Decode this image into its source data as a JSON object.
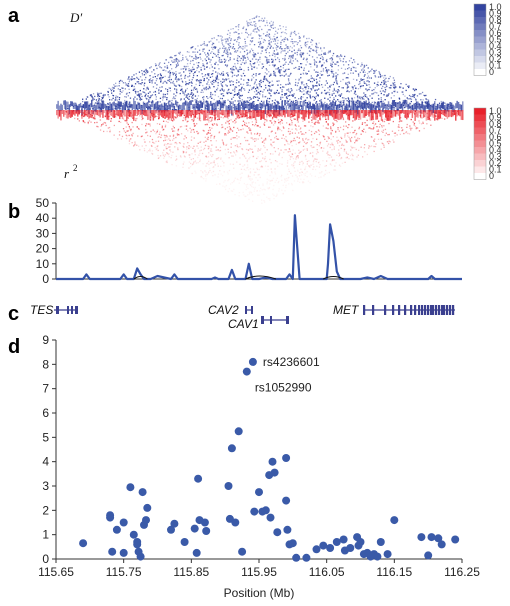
{
  "panels": {
    "a": "a",
    "b": "b",
    "c": "c",
    "d": "d"
  },
  "ld_heatmap": {
    "top_label": "D′",
    "bottom_label": "r",
    "bottom_label_sup": "2",
    "top_color": "#3344a0",
    "bottom_color": "#e8202a",
    "top_scale": [
      "1.0",
      "0.9",
      "0.8",
      "0.7",
      "0.6",
      "0.5",
      "0.4",
      "0.3",
      "0.2",
      "0.1",
      "0"
    ],
    "bottom_scale": [
      "1.0",
      "0.9",
      "0.8",
      "0.7",
      "0.6",
      "0.5",
      "0.4",
      "0.3",
      "0.2",
      "0.1",
      "0"
    ]
  },
  "genes": [
    {
      "name": "TES"
    },
    {
      "name": "CAV2"
    },
    {
      "name": "CAV1"
    },
    {
      "name": "MET"
    }
  ],
  "chart_data": [
    {
      "type": "line",
      "panel": "b",
      "yticks": [
        0,
        10,
        20,
        30,
        40,
        50
      ],
      "ylim": [
        0,
        50
      ],
      "xlim": [
        115.65,
        116.25
      ],
      "line_color": "#3352a8",
      "series": [
        {
          "x": [
            115.65,
            115.69,
            115.695,
            115.7,
            115.745,
            115.75,
            115.755,
            115.765,
            115.77,
            115.775,
            115.78,
            115.79,
            115.8,
            115.82,
            115.825,
            115.83,
            115.88,
            115.885,
            115.89,
            115.905,
            115.91,
            115.915,
            115.93,
            115.935,
            115.94,
            115.95,
            115.96,
            115.97,
            115.99,
            115.995,
            116.0,
            116.003,
            116.005,
            116.01,
            116.02,
            116.05,
            116.052,
            116.055,
            116.06,
            116.065,
            116.07,
            116.08,
            116.1,
            116.11,
            116.12,
            116.13,
            116.14,
            116.2,
            116.205,
            116.21,
            116.25
          ],
          "y": [
            0,
            0,
            3,
            0,
            0,
            3,
            0,
            0,
            7,
            3,
            0,
            0,
            2,
            0,
            3,
            0,
            0,
            1,
            0,
            0,
            6,
            0,
            0,
            10,
            0,
            0,
            1,
            0,
            0,
            3,
            0,
            42,
            30,
            0,
            0,
            0,
            10,
            36,
            25,
            5,
            0,
            0,
            0,
            1,
            0,
            2,
            0,
            0,
            2,
            0,
            0
          ]
        }
      ]
    },
    {
      "type": "scatter",
      "panel": "d",
      "xlabel": "Position (Mb)",
      "xlim": [
        115.65,
        116.25
      ],
      "ylim": [
        0,
        9
      ],
      "xticks": [
        "115.65",
        "115.75",
        "115.85",
        "115.95",
        "116.05",
        "116.15",
        "116.25"
      ],
      "yticks": [
        "0",
        "1",
        "2",
        "3",
        "4",
        "5",
        "6",
        "7",
        "8",
        "9"
      ],
      "point_color": "#3a5aa8",
      "annotations": [
        {
          "label": "rs4236601",
          "x": 115.941,
          "y": 8.1
        },
        {
          "label": "rs1052990",
          "x": 115.932,
          "y": 7.7
        }
      ],
      "points": [
        [
          115.69,
          0.65
        ],
        [
          115.73,
          1.7
        ],
        [
          115.73,
          1.8
        ],
        [
          115.733,
          0.3
        ],
        [
          115.74,
          1.2
        ],
        [
          115.75,
          1.5
        ],
        [
          115.75,
          0.25
        ],
        [
          115.76,
          2.95
        ],
        [
          115.765,
          1.0
        ],
        [
          115.77,
          0.7
        ],
        [
          115.77,
          0.6
        ],
        [
          115.772,
          0.3
        ],
        [
          115.775,
          0.1
        ],
        [
          115.778,
          2.75
        ],
        [
          115.78,
          1.4
        ],
        [
          115.785,
          2.1
        ],
        [
          115.783,
          1.6
        ],
        [
          115.82,
          1.2
        ],
        [
          115.825,
          1.45
        ],
        [
          115.84,
          0.7
        ],
        [
          115.855,
          1.25
        ],
        [
          115.858,
          0.25
        ],
        [
          115.86,
          3.3
        ],
        [
          115.862,
          1.6
        ],
        [
          115.87,
          1.5
        ],
        [
          115.872,
          1.15
        ],
        [
          115.905,
          3.0
        ],
        [
          115.907,
          1.65
        ],
        [
          115.91,
          4.55
        ],
        [
          115.915,
          1.5
        ],
        [
          115.92,
          5.25
        ],
        [
          115.925,
          0.3
        ],
        [
          115.932,
          7.7
        ],
        [
          115.941,
          8.1
        ],
        [
          115.943,
          1.95
        ],
        [
          115.95,
          2.75
        ],
        [
          115.955,
          1.95
        ],
        [
          115.96,
          2.0
        ],
        [
          115.965,
          3.45
        ],
        [
          115.967,
          1.7
        ],
        [
          115.97,
          4.0
        ],
        [
          115.973,
          3.55
        ],
        [
          115.977,
          1.1
        ],
        [
          115.99,
          4.15
        ],
        [
          115.99,
          2.4
        ],
        [
          115.992,
          1.2
        ],
        [
          115.995,
          0.6
        ],
        [
          116.0,
          0.65
        ],
        [
          116.005,
          0.05
        ],
        [
          116.02,
          0.05
        ],
        [
          116.035,
          0.4
        ],
        [
          116.045,
          0.55
        ],
        [
          116.055,
          0.45
        ],
        [
          116.065,
          0.7
        ],
        [
          116.075,
          0.8
        ],
        [
          116.077,
          0.35
        ],
        [
          116.085,
          0.45
        ],
        [
          116.095,
          0.9
        ],
        [
          116.097,
          0.55
        ],
        [
          116.1,
          0.7
        ],
        [
          116.105,
          0.2
        ],
        [
          116.11,
          0.25
        ],
        [
          116.115,
          0.1
        ],
        [
          116.12,
          0.2
        ],
        [
          116.125,
          0.1
        ],
        [
          116.13,
          0.7
        ],
        [
          116.14,
          0.2
        ],
        [
          116.15,
          1.6
        ],
        [
          116.19,
          0.9
        ],
        [
          116.2,
          0.15
        ],
        [
          116.205,
          0.9
        ],
        [
          116.215,
          0.85
        ],
        [
          116.22,
          0.6
        ],
        [
          116.24,
          0.8
        ]
      ]
    }
  ]
}
